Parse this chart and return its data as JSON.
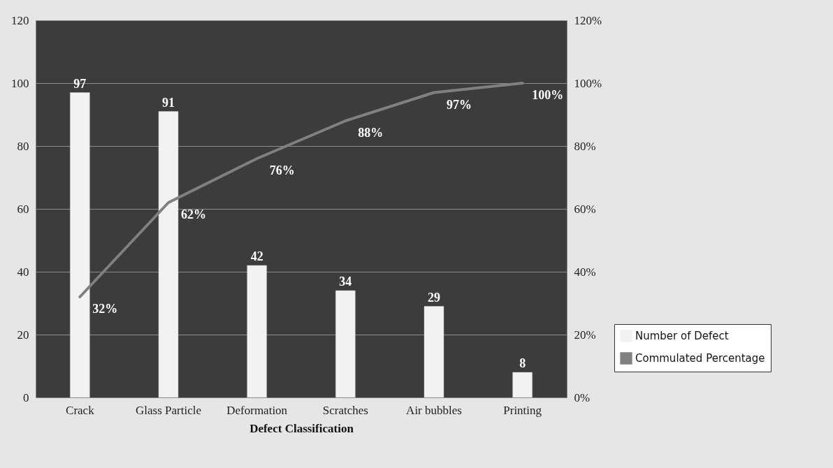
{
  "chart_data": {
    "type": "bar",
    "xlabel": "Defect Classification",
    "categories": [
      "Crack",
      "Glass Particle",
      "Deformation",
      "Scratches",
      "Air bubbles",
      "Printing"
    ],
    "series": [
      {
        "name": "Number of Defect",
        "color": "#f2f2f2",
        "values": [
          97,
          91,
          42,
          34,
          29,
          8
        ]
      },
      {
        "name": "Commulated Percentage",
        "type": "line",
        "axis": "y2",
        "color": "#808080",
        "values": [
          32,
          62,
          76,
          88,
          97,
          100
        ],
        "value_labels": [
          "32%",
          "62%",
          "76%",
          "88%",
          "97%",
          "100%"
        ]
      }
    ],
    "ylim": [
      0,
      120
    ],
    "yticks": [
      0,
      20,
      40,
      60,
      80,
      100,
      120
    ],
    "y2lim": [
      0,
      120
    ],
    "y2ticks": [
      {
        "value": 0,
        "label": "0%"
      },
      {
        "value": 20,
        "label": "20%"
      },
      {
        "value": 40,
        "label": "40%"
      },
      {
        "value": 60,
        "label": "60%"
      },
      {
        "value": 80,
        "label": "80%"
      },
      {
        "value": 100,
        "label": "100%"
      },
      {
        "value": 120,
        "label": "120%"
      }
    ],
    "data_labels": true,
    "grid": "y",
    "legend": "bottom right"
  }
}
